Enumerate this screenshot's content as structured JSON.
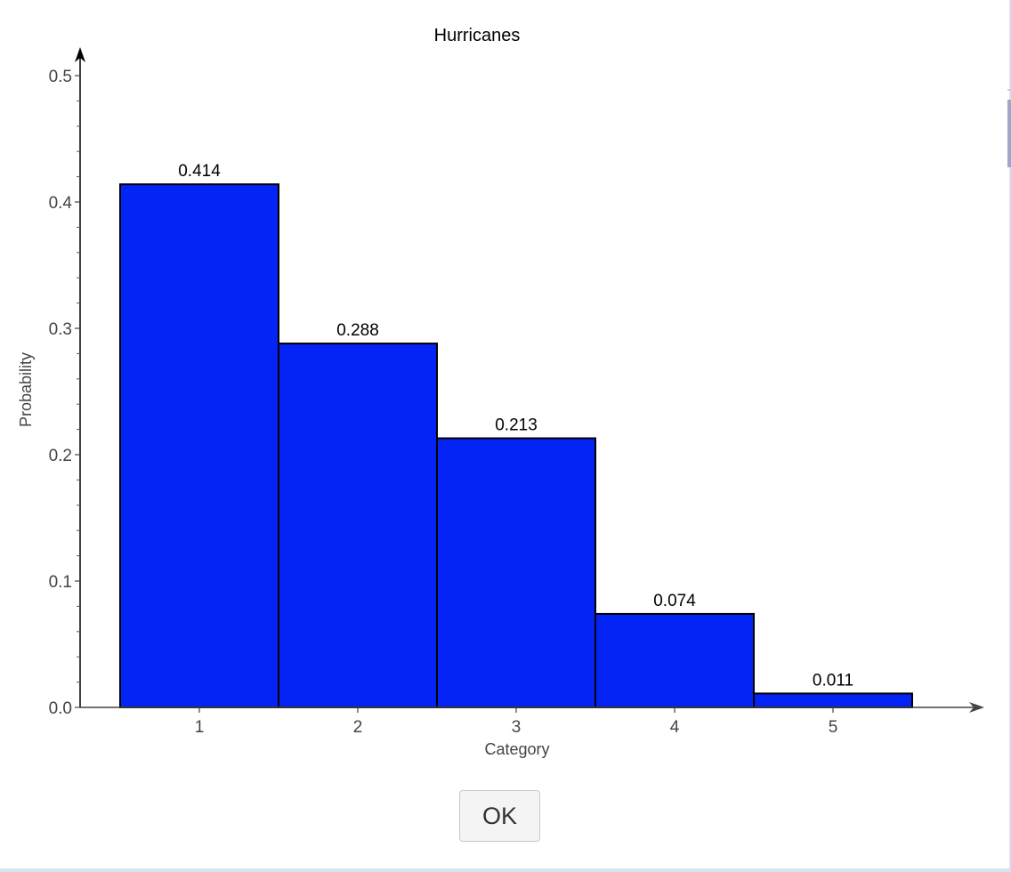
{
  "chart_data": {
    "type": "bar",
    "title": "Hurricanes",
    "xlabel": "Category",
    "ylabel": "Probability",
    "categories": [
      "1",
      "2",
      "3",
      "4",
      "5"
    ],
    "values": [
      0.414,
      0.288,
      0.213,
      0.074,
      0.011
    ],
    "data_labels": [
      "0.414",
      "0.288",
      "0.213",
      "0.074",
      "0.011"
    ],
    "ylim": [
      0,
      0.5
    ],
    "yticks": [
      0.0,
      0.1,
      0.2,
      0.3,
      0.4,
      0.5
    ],
    "ytick_labels": [
      "0.0",
      "0.1",
      "0.2",
      "0.3",
      "0.4",
      "0.5"
    ],
    "grid": false,
    "legend": "none",
    "bar_color": "#0324F5",
    "bar_edge_color": "#000000"
  },
  "dialog": {
    "ok_label": "OK"
  }
}
